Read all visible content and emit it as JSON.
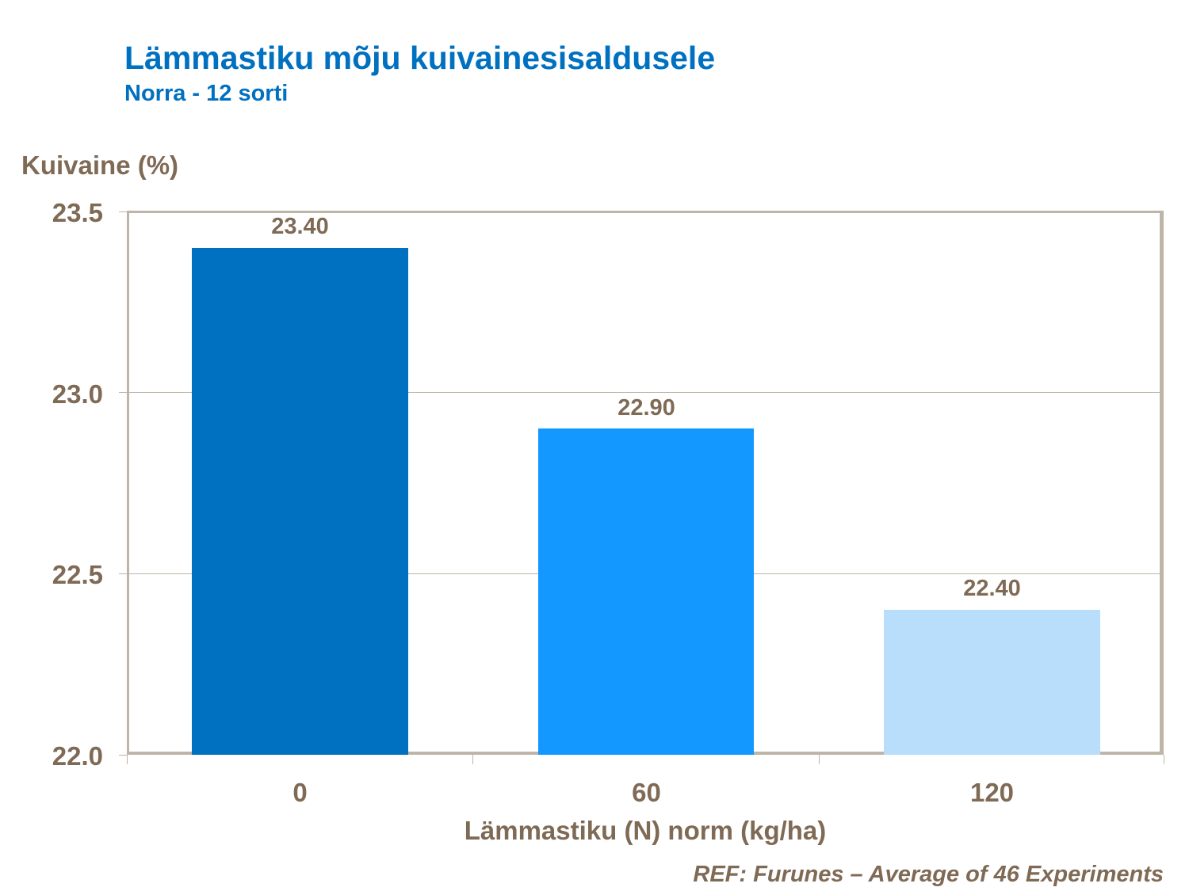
{
  "header": {
    "title": "Lämmastiku mõju kuivainesisaldusele",
    "subtitle": "Norra - 12 sorti"
  },
  "reference": "REF: Furunes – Average of 46 Experiments",
  "chart_data": {
    "type": "bar",
    "title": "Lämmastiku mõju kuivainesisaldusele",
    "subtitle": "Norra - 12 sorti",
    "xlabel": "Lämmastiku (N) norm (kg/ha)",
    "ylabel": "Kuivaine (%)",
    "categories": [
      "0",
      "60",
      "120"
    ],
    "values": [
      23.4,
      22.9,
      22.4
    ],
    "value_labels": [
      "23.40",
      "22.90",
      "22.40"
    ],
    "bar_colors": [
      "#0070C0",
      "#1398FF",
      "#B8DEFC"
    ],
    "ylim": [
      22.0,
      23.5
    ],
    "yticks": [
      "23.5",
      "23.0",
      "22.5",
      "22.0"
    ],
    "grid": true,
    "legend": null,
    "annotation": "REF: Furunes – Average of 46 Experiments"
  }
}
